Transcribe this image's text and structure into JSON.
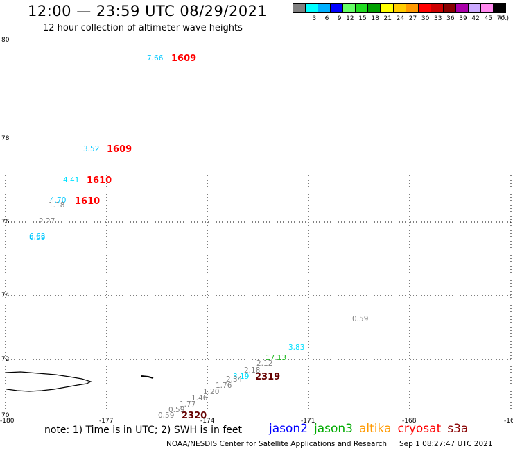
{
  "header": {
    "title": "12:00 — 23:59 UTC 08/29/2021",
    "subtitle": "12 hour collection of altimeter wave heights"
  },
  "scale": {
    "colors": [
      "#808080",
      "#00ffff",
      "#00b0ff",
      "#0000ff",
      "#66ff66",
      "#22dd22",
      "#00a000",
      "#ffff00",
      "#ffcc00",
      "#ff9900",
      "#ff0000",
      "#cc0000",
      "#880000",
      "#aa00aa",
      "#ccaaff",
      "#ff88ee",
      "#000000"
    ],
    "labels": [
      "",
      "3",
      "6",
      "9",
      "12",
      "15",
      "18",
      "21",
      "24",
      "27",
      "30",
      "33",
      "36",
      "39",
      "42",
      "45",
      "70"
    ],
    "unit": "(ft)"
  },
  "axes": {
    "lat_labels": [
      "80",
      "78",
      "76",
      "74",
      "72",
      "70"
    ],
    "lon_labels": [
      "-180",
      "-177",
      "-174",
      "-171",
      "-168",
      "-16"
    ]
  },
  "observations": {
    "wave_heights": [
      {
        "text": "7.66",
        "color": "#00c8ff"
      },
      {
        "text": "3.52",
        "color": "#00c8ff"
      },
      {
        "text": "4.41",
        "color": "#00e0ff"
      },
      {
        "text": "4.70",
        "color": "#00c8ff"
      },
      {
        "text": "1.18",
        "color": "#808080"
      },
      {
        "text": "2.27",
        "color": "#808080"
      },
      {
        "text": "6.63",
        "color": "#00c8ff"
      },
      {
        "text": "6.59",
        "color": "#00c8ff"
      },
      {
        "text": "0.59",
        "color": "#808080"
      },
      {
        "text": "3.83",
        "color": "#00e0ff"
      },
      {
        "text": "17.13",
        "color": "#22bb22"
      },
      {
        "text": "2.12",
        "color": "#808080"
      },
      {
        "text": "2.18",
        "color": "#808080"
      },
      {
        "text": "3.19",
        "color": "#00e0ff"
      },
      {
        "text": "2.34",
        "color": "#808080"
      },
      {
        "text": "1.76",
        "color": "#808080"
      },
      {
        "text": "1.20",
        "color": "#808080"
      },
      {
        "text": "1.46",
        "color": "#808080"
      },
      {
        "text": "1.77",
        "color": "#808080"
      },
      {
        "text": "0.59",
        "color": "#808080"
      },
      {
        "text": "0.59",
        "color": "#808080"
      }
    ],
    "time_stamps": [
      {
        "text": "1609",
        "color": "#ff0000"
      },
      {
        "text": "1609",
        "color": "#ff0000"
      },
      {
        "text": "1610",
        "color": "#ff0000"
      },
      {
        "text": "1610",
        "color": "#ff0000"
      },
      {
        "text": "2319",
        "color": "#660000"
      },
      {
        "text": "2320",
        "color": "#660000"
      }
    ]
  },
  "footer": {
    "note": "note: 1) Time is in UTC; 2) SWH is in feet",
    "satellites": [
      {
        "name": "jason2",
        "color": "#0000ff"
      },
      {
        "name": "jason3",
        "color": "#00aa00"
      },
      {
        "name": "altika",
        "color": "#ff9900"
      },
      {
        "name": "cryosat",
        "color": "#ff0000"
      },
      {
        "name": "s3a",
        "color": "#880000"
      }
    ],
    "credit": "NOAA/NESDIS Center for Satellite Applications and Research",
    "timestamp": "Sep  1 08:27:47 UTC 2021"
  }
}
